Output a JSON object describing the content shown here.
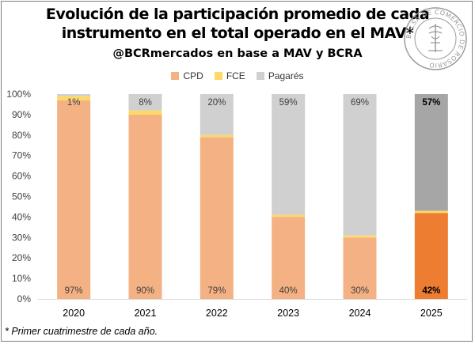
{
  "title_line1": "Evolución de la participación promedio de cada",
  "title_line2": "instrumento en el total operado en el MAV*",
  "subtitle": "@BCRmercados en base a MAV y BCRA",
  "seal_text": "BOLSA DE COMERCIO DE ROSARIO",
  "footnote": "* Primer cuatrimestre de cada año.",
  "colors": {
    "cpd": "#f4b183",
    "fce": "#ffd966",
    "pagares": "#d0d0d0",
    "cpd_highlight": "#ed7d31",
    "pagares_highlight": "#a6a6a6",
    "axis": "#d9d9d9",
    "text": "#404040"
  },
  "chart_data": {
    "type": "bar",
    "stacked": true,
    "categories": [
      "2020",
      "2021",
      "2022",
      "2023",
      "2024",
      "2025"
    ],
    "series": [
      {
        "name": "CPD",
        "values": [
          97,
          90,
          79,
          40,
          30,
          42
        ],
        "labels": [
          "97%",
          "90%",
          "79%",
          "40%",
          "30%",
          "42%"
        ]
      },
      {
        "name": "FCE",
        "values": [
          2,
          2,
          1,
          1,
          1,
          1
        ],
        "labels": [
          "",
          "",
          "",
          "",
          "",
          ""
        ]
      },
      {
        "name": "Pagarés",
        "values": [
          1,
          8,
          20,
          59,
          69,
          57
        ],
        "labels": [
          "1%",
          "8%",
          "20%",
          "59%",
          "69%",
          "57%"
        ]
      }
    ],
    "highlight_category": "2025",
    "y_ticks": [
      "0%",
      "10%",
      "20%",
      "30%",
      "40%",
      "50%",
      "60%",
      "70%",
      "80%",
      "90%",
      "100%"
    ],
    "ylim": [
      0,
      100
    ],
    "legend_position": "top",
    "grid": false
  }
}
